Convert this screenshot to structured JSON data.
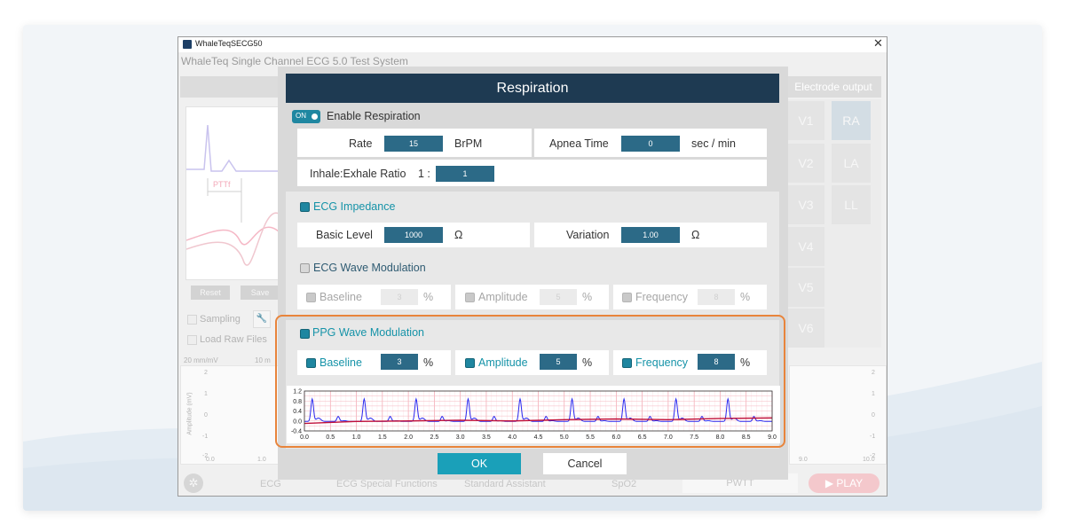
{
  "window": {
    "title": "WhaleTeqSECG50",
    "close_glyph": "✕",
    "subtitle": "WhaleTeq Single Channel ECG 5.0 Test System"
  },
  "background": {
    "ptt_label": "PTTf",
    "reset_label": "Reset",
    "save_label": "Save",
    "sampling_label": "Sampling",
    "load_raw_label": "Load Raw Files",
    "scale_20": "20 mm/mV",
    "scale_10": "10 m",
    "amplitude_axis": "Amplitude (mV)",
    "left_y_ticks": [
      "2",
      "1",
      "0",
      "-1",
      "-2"
    ],
    "right_y_ticks": [
      "2",
      "1",
      "0",
      "-1",
      "-2"
    ],
    "left_x_ticks": [
      "0.0",
      "1.0"
    ],
    "right_x_ticks": [
      "9.0",
      "10.0"
    ],
    "electrode_output": "Electrode output",
    "precordial_leads": [
      "V1",
      "V2",
      "V3",
      "V4",
      "V5",
      "V6"
    ],
    "limb_leads": [
      "RA",
      "LA",
      "LL"
    ],
    "bottom_tabs": [
      "ECG",
      "ECG Special Functions",
      "Standard Assistant",
      "SpO2",
      "PWTT"
    ],
    "play_label": "PLAY"
  },
  "dialog": {
    "title": "Respiration",
    "toggle_label": "ON",
    "enable_respiration": "Enable Respiration",
    "rate_label": "Rate",
    "rate_value": "15",
    "rate_unit": "BrPM",
    "apnea_label": "Apnea Time",
    "apnea_value": "0",
    "apnea_unit": "sec / min",
    "ratio_label": "Inhale:Exhale Ratio",
    "ratio_prefix": "1 :",
    "ratio_value": "1",
    "ecg_impedance": "ECG Impedance",
    "basic_level_label": "Basic Level",
    "basic_level_value": "1000",
    "ohm": "Ω",
    "variation_label": "Variation",
    "variation_value": "1.00",
    "ecg_wave_mod": "ECG Wave Modulation",
    "ecg_baseline": "Baseline",
    "ecg_baseline_value": "3",
    "ecg_amplitude": "Amplitude",
    "ecg_amplitude_value": "5",
    "ecg_frequency": "Frequency",
    "ecg_frequency_value": "8",
    "percent": "%",
    "ppg_wave_mod": "PPG Wave Modulation",
    "ppg_baseline": "Baseline",
    "ppg_baseline_value": "3",
    "ppg_amplitude": "Amplitude",
    "ppg_amplitude_value": "5",
    "ppg_frequency": "Frequency",
    "ppg_frequency_value": "8",
    "ok_label": "OK",
    "cancel_label": "Cancel"
  },
  "colors": {
    "dialog_header": "#1e3a52",
    "field_blue": "#2c6a87",
    "teal": "#1693a8",
    "ok_button": "#1aa0b9",
    "highlight_orange": "#e8843b",
    "ppg_wave": "#2a2af0",
    "baseline_wave": "#c0103a"
  },
  "chart_data": {
    "type": "line",
    "title": "",
    "xlabel": "",
    "ylabel": "",
    "xlim": [
      0,
      9
    ],
    "ylim": [
      -0.4,
      1.2
    ],
    "x_ticks": [
      "0.0",
      "0.5",
      "1.0",
      "1.5",
      "2.0",
      "2.5",
      "3.0",
      "3.5",
      "4.0",
      "4.5",
      "5.0",
      "5.5",
      "6.0",
      "6.5",
      "7.0",
      "7.5",
      "8.0",
      "8.5",
      "9.0"
    ],
    "y_ticks": [
      "1.2",
      "0.8",
      "0.4",
      "0.0",
      "-0.4"
    ],
    "grid": true,
    "series": [
      {
        "color": "#2a2af0",
        "peak_times": [
          0.15,
          0.65,
          1.15,
          1.65,
          2.15,
          2.65,
          3.15,
          3.65,
          4.15,
          4.65,
          5.15,
          5.65,
          6.15,
          6.65,
          7.15,
          7.65,
          8.15,
          8.65
        ],
        "peak_values": [
          0.9,
          0.2,
          0.9,
          0.2,
          0.9,
          0.2,
          0.9,
          0.2,
          0.9,
          0.2,
          0.9,
          0.2,
          0.9,
          0.2,
          0.9,
          0.2,
          0.9,
          0.2
        ]
      },
      {
        "color": "#c0103a",
        "x": [
          0.0,
          1.0,
          2.0,
          3.0,
          4.0,
          5.0,
          6.0,
          7.0,
          8.0,
          9.0
        ],
        "values": [
          -0.1,
          -0.02,
          0.0,
          0.03,
          0.0,
          0.05,
          0.08,
          0.05,
          0.1,
          0.12
        ]
      }
    ]
  }
}
